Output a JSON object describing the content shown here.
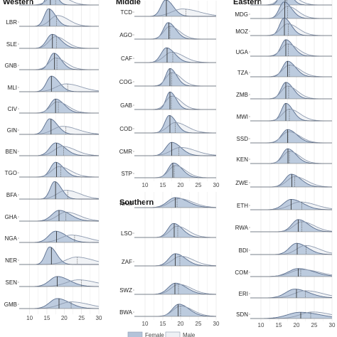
{
  "chart_data": {
    "type": "area",
    "description_values": "age density distributions",
    "x_ticks": [
      10,
      15,
      20,
      25,
      30
    ],
    "xlim": [
      7,
      30
    ],
    "grid": "vertical",
    "legend": {
      "position": "bottom",
      "items": [
        {
          "name": "Female",
          "color": "#b3c3d9"
        },
        {
          "name": "Male",
          "color": "#eef1f5"
        }
      ]
    },
    "colors": {
      "female_fill": "#b3c3d9",
      "female_line": "#5b6f8f",
      "male_fill": "#eef1f5",
      "male_line": "#8e9bb0",
      "median_line": "#222222",
      "grid": "#e4e4e4",
      "baseline": "#666666"
    },
    "panels": [
      {
        "title": "Western",
        "countries": [
          {
            "code": "",
            "female": {
              "mode": 16.0,
              "sd": 1.3
            },
            "male": {
              "mode": 17.5,
              "sd": 2.6
            },
            "female_median": 16.0,
            "male_median": 17.5
          },
          {
            "code": "LBR",
            "female": {
              "mode": 15.5,
              "sd": 1.6
            },
            "male": {
              "mode": 18.0,
              "sd": 2.6
            },
            "female_median": 15.8,
            "male_median": 17.8
          },
          {
            "code": "SLE",
            "female": {
              "mode": 16.5,
              "sd": 2.0
            },
            "male": {
              "mode": 17.5,
              "sd": 2.4
            },
            "female_median": 16.6,
            "male_median": 17.8
          },
          {
            "code": "GNB",
            "female": {
              "mode": 17.0,
              "sd": 1.7
            },
            "male": {
              "mode": 17.5,
              "sd": 2.4
            },
            "female_median": 17.2,
            "male_median": 17.9
          },
          {
            "code": "MLI",
            "female": {
              "mode": 16.3,
              "sd": 1.8
            },
            "male": {
              "mode": 20.5,
              "sd": 3.6
            },
            "female_median": 16.3,
            "male_median": 21.0
          },
          {
            "code": "CIV",
            "female": {
              "mode": 17.5,
              "sd": 2.0
            },
            "male": {
              "mode": 18.0,
              "sd": 2.5
            },
            "female_median": 17.5,
            "male_median": 18.3
          },
          {
            "code": "GIN",
            "female": {
              "mode": 15.8,
              "sd": 1.8
            },
            "male": {
              "mode": 19.5,
              "sd": 3.5
            },
            "female_median": 16.2,
            "male_median": 20.5
          },
          {
            "code": "BEN",
            "female": {
              "mode": 17.5,
              "sd": 2.2
            },
            "male": {
              "mode": 19.5,
              "sd": 3.0
            },
            "female_median": 17.8,
            "male_median": 19.8
          },
          {
            "code": "TGO",
            "female": {
              "mode": 17.5,
              "sd": 1.9
            },
            "male": {
              "mode": 18.5,
              "sd": 2.7
            },
            "female_median": 17.8,
            "male_median": 19.0
          },
          {
            "code": "BFA",
            "female": {
              "mode": 17.2,
              "sd": 1.6
            },
            "male": {
              "mode": 20.5,
              "sd": 3.2
            },
            "female_median": 17.5,
            "male_median": 21.0
          },
          {
            "code": "GHA",
            "female": {
              "mode": 18.5,
              "sd": 2.6
            },
            "male": {
              "mode": 20.5,
              "sd": 3.1
            },
            "female_median": 18.5,
            "male_median": 20.5
          },
          {
            "code": "NGA",
            "female": {
              "mode": 17.5,
              "sd": 2.5
            },
            "male": {
              "mode": 22.0,
              "sd": 3.8
            },
            "female_median": 17.8,
            "male_median": 23.0
          },
          {
            "code": "NER",
            "female": {
              "mode": 15.8,
              "sd": 1.6
            },
            "male": {
              "mode": 23.5,
              "sd": 3.8
            },
            "female_median": 16.3,
            "male_median": 23.8
          },
          {
            "code": "SEN",
            "female": {
              "mode": 18.0,
              "sd": 2.8
            },
            "male": {
              "mode": 24.0,
              "sd": 4.2
            },
            "female_median": 18.0,
            "male_median": 25.0
          },
          {
            "code": "GMB",
            "female": {
              "mode": 18.0,
              "sd": 2.8
            },
            "male": {
              "mode": 22.0,
              "sd": 4.2
            },
            "female_median": 18.5,
            "male_median": 22.0
          }
        ]
      },
      {
        "title": "Middle",
        "countries": [
          {
            "code": "TCD",
            "female": {
              "mode": 15.8,
              "sd": 1.7
            },
            "male": {
              "mode": 20.5,
              "sd": 3.8
            },
            "female_median": 16.0,
            "male_median": 21.5
          },
          {
            "code": "AGO",
            "female": {
              "mode": 16.5,
              "sd": 1.7
            },
            "male": {
              "mode": 17.0,
              "sd": 2.2
            },
            "female_median": 16.7,
            "male_median": 17.0
          },
          {
            "code": "CAF",
            "female": {
              "mode": 16.0,
              "sd": 1.9
            },
            "male": {
              "mode": 17.5,
              "sd": 2.7
            },
            "female_median": 16.2,
            "male_median": 17.8
          },
          {
            "code": "COG",
            "female": {
              "mode": 17.0,
              "sd": 1.5
            },
            "male": {
              "mode": 17.5,
              "sd": 2.1
            },
            "female_median": 17.0,
            "male_median": 17.5
          },
          {
            "code": "GAB",
            "female": {
              "mode": 17.0,
              "sd": 1.4
            },
            "male": {
              "mode": 17.5,
              "sd": 2.1
            },
            "female_median": 17.0,
            "male_median": 17.4
          },
          {
            "code": "COD",
            "female": {
              "mode": 16.8,
              "sd": 1.6
            },
            "male": {
              "mode": 18.5,
              "sd": 2.7
            },
            "female_median": 17.0,
            "male_median": 18.5
          },
          {
            "code": "CMR",
            "female": {
              "mode": 17.5,
              "sd": 2.1
            },
            "male": {
              "mode": 20.0,
              "sd": 3.4
            },
            "female_median": 17.5,
            "male_median": 19.5
          },
          {
            "code": "STP",
            "female": {
              "mode": 18.0,
              "sd": 1.9
            },
            "male": {
              "mode": 18.5,
              "sd": 2.3
            },
            "female_median": 17.8,
            "male_median": 18.2
          }
        ]
      },
      {
        "title": "Southern",
        "countries": [
          {
            "code": "NAM",
            "female": {
              "mode": 18.5,
              "sd": 2.8
            },
            "male": {
              "mode": 19.5,
              "sd": 3.1
            },
            "female_median": 18.5,
            "male_median": 19.0
          },
          {
            "code": "LSO",
            "female": {
              "mode": 18.0,
              "sd": 2.0
            },
            "male": {
              "mode": 19.0,
              "sd": 2.5
            },
            "female_median": 18.2,
            "male_median": 19.2
          },
          {
            "code": "ZAF",
            "female": {
              "mode": 18.5,
              "sd": 2.3
            },
            "male": {
              "mode": 20.0,
              "sd": 2.9
            },
            "female_median": 18.5,
            "male_median": 19.8
          },
          {
            "code": "SWZ",
            "female": {
              "mode": 18.5,
              "sd": 2.5
            },
            "male": {
              "mode": 19.5,
              "sd": 2.8
            },
            "female_median": 18.4,
            "male_median": 19.4
          },
          {
            "code": "BWA",
            "female": {
              "mode": 19.5,
              "sd": 2.3
            },
            "male": {
              "mode": 20.0,
              "sd": 2.7
            },
            "female_median": 19.3,
            "male_median": 20.0
          }
        ]
      },
      {
        "title": "Eastern",
        "countries": [
          {
            "code": "",
            "female": {
              "mode": 16.5,
              "sd": 1.5
            },
            "male": {
              "mode": 17.0,
              "sd": 2.3
            },
            "female_median": 16.8,
            "male_median": 17.3
          },
          {
            "code": "MDG",
            "female": {
              "mode": 16.5,
              "sd": 1.7
            },
            "male": {
              "mode": 17.5,
              "sd": 2.3
            },
            "female_median": 16.7,
            "male_median": 17.5
          },
          {
            "code": "MOZ",
            "female": {
              "mode": 16.5,
              "sd": 1.6
            },
            "male": {
              "mode": 17.5,
              "sd": 2.4
            },
            "female_median": 16.6,
            "male_median": 17.7
          },
          {
            "code": "UGA",
            "female": {
              "mode": 17.0,
              "sd": 1.7
            },
            "male": {
              "mode": 17.5,
              "sd": 2.3
            },
            "female_median": 17.0,
            "male_median": 17.7
          },
          {
            "code": "TZA",
            "female": {
              "mode": 17.5,
              "sd": 1.8
            },
            "male": {
              "mode": 18.0,
              "sd": 2.4
            },
            "female_median": 17.5,
            "male_median": 18.0
          },
          {
            "code": "ZMB",
            "female": {
              "mode": 17.0,
              "sd": 1.7
            },
            "male": {
              "mode": 17.5,
              "sd": 2.2
            },
            "female_median": 17.0,
            "male_median": 17.8
          },
          {
            "code": "MWI",
            "female": {
              "mode": 17.0,
              "sd": 1.6
            },
            "male": {
              "mode": 18.0,
              "sd": 2.4
            },
            "female_median": 17.0,
            "male_median": 18.0
          },
          {
            "code": "SSD",
            "female": {
              "mode": 17.5,
              "sd": 2.1
            },
            "male": {
              "mode": 17.8,
              "sd": 2.5
            },
            "female_median": 17.5,
            "male_median": 17.6
          },
          {
            "code": "KEN",
            "female": {
              "mode": 17.5,
              "sd": 1.9
            },
            "male": {
              "mode": 18.0,
              "sd": 2.3
            },
            "female_median": 17.6,
            "male_median": 18.0
          },
          {
            "code": "ZWE",
            "female": {
              "mode": 18.5,
              "sd": 2.2
            },
            "male": {
              "mode": 19.5,
              "sd": 2.7
            },
            "female_median": 18.7,
            "male_median": 19.5
          },
          {
            "code": "ETH",
            "female": {
              "mode": 18.5,
              "sd": 2.7
            },
            "male": {
              "mode": 21.0,
              "sd": 3.6
            },
            "female_median": 18.5,
            "male_median": 21.5
          },
          {
            "code": "RWA",
            "female": {
              "mode": 20.5,
              "sd": 2.3
            },
            "male": {
              "mode": 21.5,
              "sd": 2.8
            },
            "female_median": 20.5,
            "male_median": 21.5
          },
          {
            "code": "BDI",
            "female": {
              "mode": 20.0,
              "sd": 2.5
            },
            "male": {
              "mode": 22.5,
              "sd": 3.1
            },
            "female_median": 20.2,
            "male_median": 22.7
          },
          {
            "code": "COM",
            "female": {
              "mode": 20.5,
              "sd": 3.5
            },
            "male": {
              "mode": 21.5,
              "sd": 4.0
            },
            "female_median": 20.5,
            "male_median": 21.2
          },
          {
            "code": "ERI",
            "female": {
              "mode": 19.5,
              "sd": 3.2
            },
            "male": {
              "mode": 22.5,
              "sd": 3.9
            },
            "female_median": 20.0,
            "male_median": 22.5
          },
          {
            "code": "SDN",
            "female": {
              "mode": 21.0,
              "sd": 4.5
            },
            "male": {
              "mode": 24.5,
              "sd": 4.3
            },
            "female_median": 21.2,
            "male_median": 24.0
          }
        ]
      }
    ]
  }
}
